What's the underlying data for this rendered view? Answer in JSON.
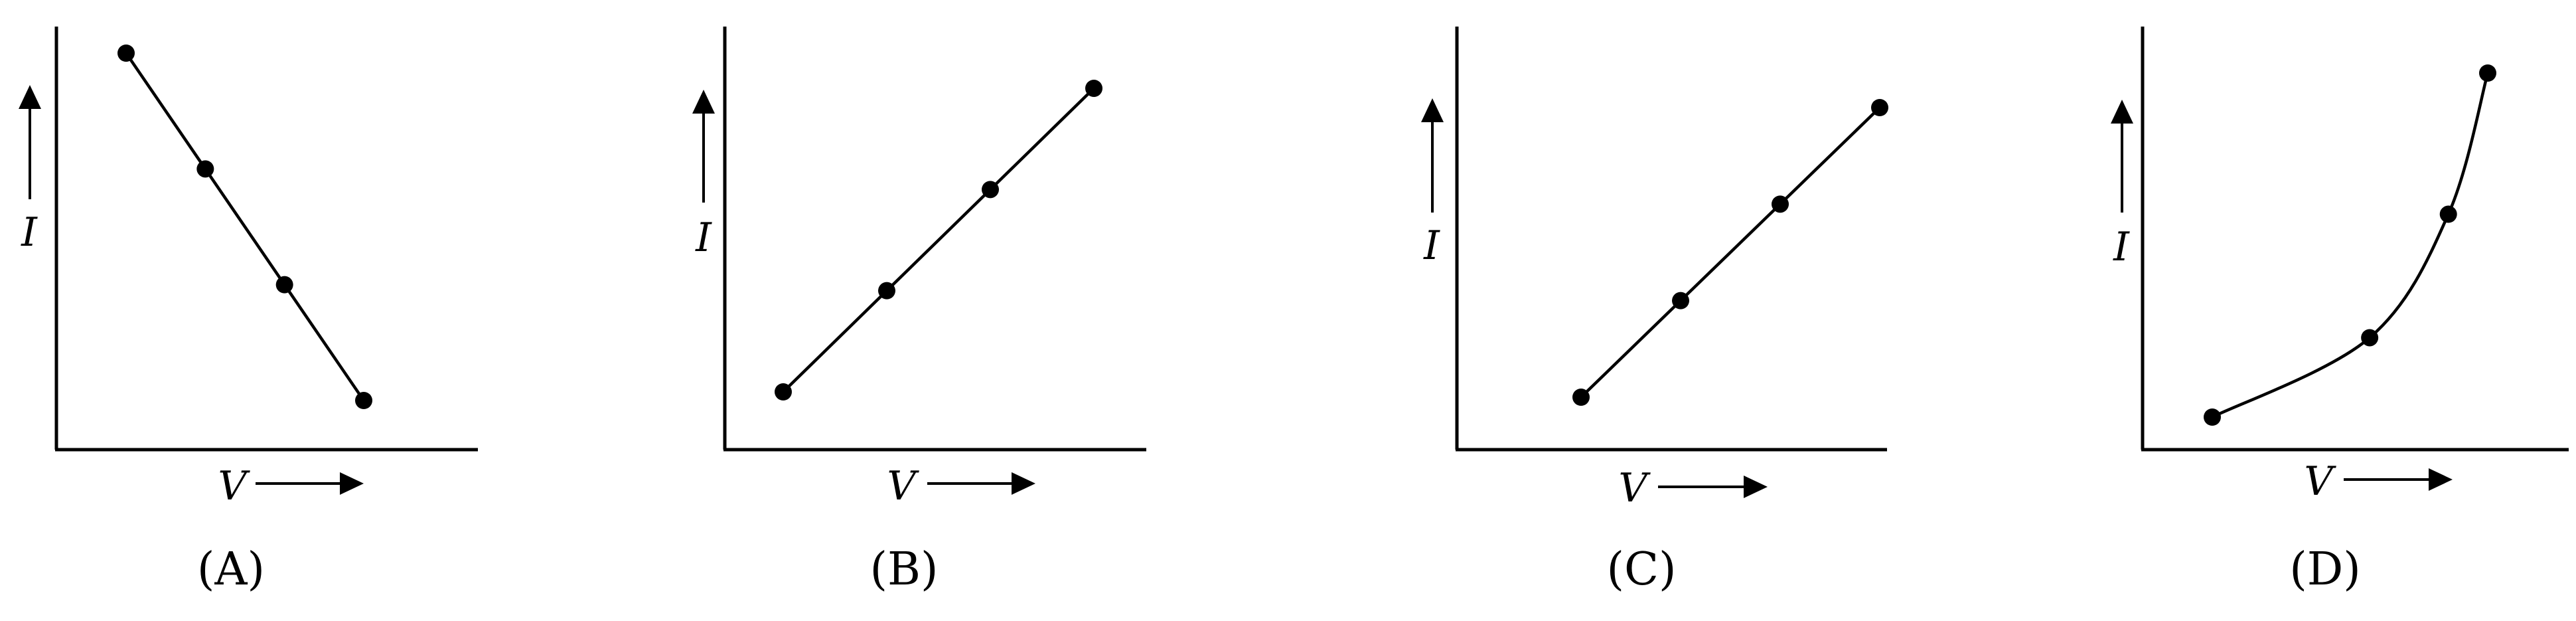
{
  "chart_data": [
    {
      "type": "line",
      "panel_label": "(A)",
      "xlabel": "V",
      "ylabel": "I",
      "curve": "linear",
      "series": [
        {
          "x": [
            1.0,
            2.0,
            3.0,
            4.0
          ],
          "y": [
            4.0,
            3.0,
            2.0,
            1.0
          ]
        }
      ]
    },
    {
      "type": "line",
      "panel_label": "(B)",
      "xlabel": "V",
      "ylabel": "I",
      "curve": "linear",
      "series": [
        {
          "x": [
            1.0,
            2.0,
            3.0,
            4.0
          ],
          "y": [
            1.0,
            2.0,
            3.0,
            4.0
          ]
        }
      ]
    },
    {
      "type": "line",
      "panel_label": "(C)",
      "xlabel": "V",
      "ylabel": "I",
      "curve": "linear",
      "series": [
        {
          "x": [
            1.0,
            2.0,
            3.0,
            4.0
          ],
          "y": [
            1.0,
            2.0,
            3.0,
            4.0
          ]
        }
      ]
    },
    {
      "type": "line",
      "panel_label": "(D)",
      "xlabel": "V",
      "ylabel": "I",
      "curve": "smooth",
      "series": [
        {
          "x": [
            1.0,
            3.0,
            4.0,
            4.5
          ],
          "y": [
            1.0,
            1.9,
            3.3,
            4.9
          ]
        }
      ]
    }
  ]
}
